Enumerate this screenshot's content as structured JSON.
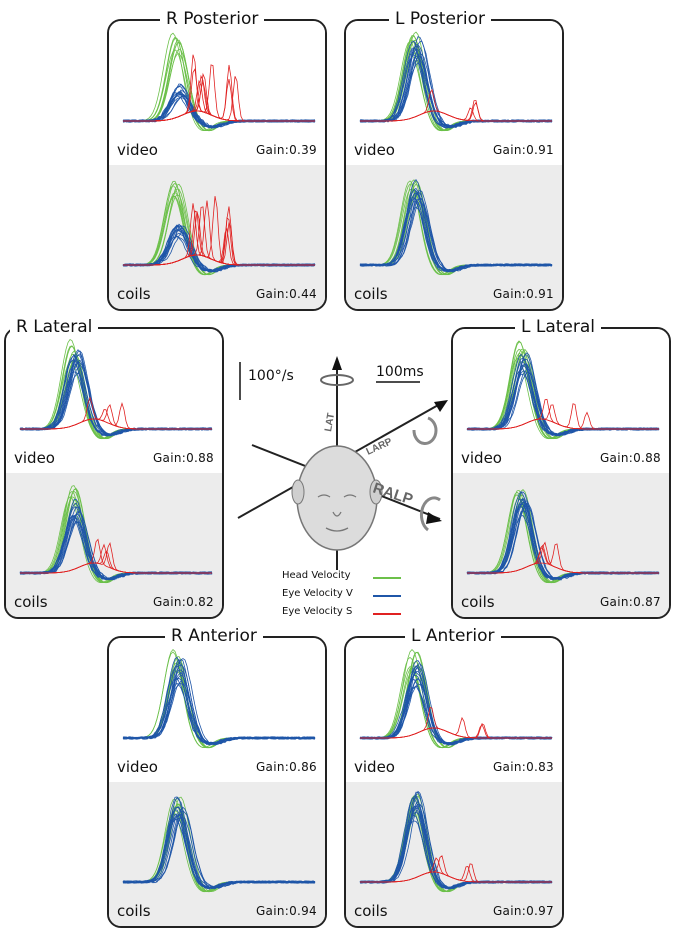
{
  "colors": {
    "head": "#6cc04a",
    "eye_v": "#1f56a8",
    "eye_s": "#e02121",
    "panel_border": "#222222",
    "coils_bg": "#ececec"
  },
  "scale": {
    "velocity": "100°/s",
    "time": "100ms"
  },
  "head_axes": {
    "lat": "LAT",
    "larp": "LARP",
    "ralp": "RALP"
  },
  "legend": [
    {
      "label": "Head Velocity",
      "color": "#6cc04a"
    },
    {
      "label": "Eye Velocity V",
      "color": "#1f56a8"
    },
    {
      "label": "Eye Velocity S",
      "color": "#e02121"
    }
  ],
  "chart_data": [
    {
      "type": "line",
      "title": "R Posterior",
      "canal": "r-posterior",
      "rows": [
        {
          "modality": "video",
          "gain": "Gain:0.39",
          "gain_value": 0.39,
          "saccades": true
        },
        {
          "modality": "coils",
          "gain": "Gain:0.44",
          "gain_value": 0.44,
          "saccades": true
        }
      ]
    },
    {
      "type": "line",
      "title": "L Posterior",
      "canal": "l-posterior",
      "rows": [
        {
          "modality": "video",
          "gain": "Gain:0.91",
          "gain_value": 0.91,
          "saccades": true
        },
        {
          "modality": "coils",
          "gain": "Gain:0.91",
          "gain_value": 0.91,
          "saccades": false
        }
      ]
    },
    {
      "type": "line",
      "title": "R Lateral",
      "canal": "r-lateral",
      "rows": [
        {
          "modality": "video",
          "gain": "Gain:0.88",
          "gain_value": 0.88,
          "saccades": true
        },
        {
          "modality": "coils",
          "gain": "Gain:0.82",
          "gain_value": 0.82,
          "saccades": true
        }
      ]
    },
    {
      "type": "line",
      "title": "L Lateral",
      "canal": "l-lateral",
      "rows": [
        {
          "modality": "video",
          "gain": "Gain:0.88",
          "gain_value": 0.88,
          "saccades": true
        },
        {
          "modality": "coils",
          "gain": "Gain:0.87",
          "gain_value": 0.87,
          "saccades": true
        }
      ]
    },
    {
      "type": "line",
      "title": "R Anterior",
      "canal": "r-anterior",
      "rows": [
        {
          "modality": "video",
          "gain": "Gain:0.86",
          "gain_value": 0.86,
          "saccades": false
        },
        {
          "modality": "coils",
          "gain": "Gain:0.94",
          "gain_value": 0.94,
          "saccades": false
        }
      ]
    },
    {
      "type": "line",
      "title": "L Anterior",
      "canal": "l-anterior",
      "rows": [
        {
          "modality": "video",
          "gain": "Gain:0.83",
          "gain_value": 0.83,
          "saccades": true
        },
        {
          "modality": "coils",
          "gain": "Gain:0.97",
          "gain_value": 0.97,
          "saccades": true
        }
      ]
    }
  ]
}
